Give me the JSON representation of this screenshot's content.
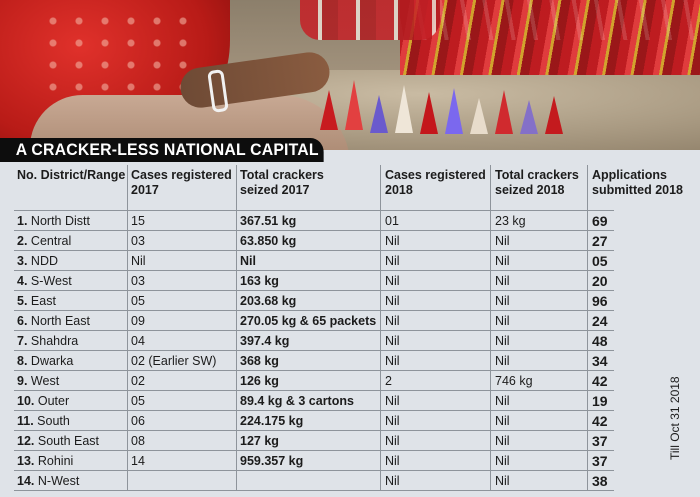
{
  "heading": "A CRACKER-LESS NATIONAL CAPITAL",
  "columns": [
    "No. District/Range",
    "Cases registered 2017",
    "Total crackers seized 2017",
    "Cases registered 2018",
    "Total crackers seized 2018",
    "Applications submitted 2018"
  ],
  "columns_split": [
    [
      "No. District/Range",
      ""
    ],
    [
      "Cases registered",
      "2017"
    ],
    [
      "Total crackers",
      "seized 2017"
    ],
    [
      "Cases registered",
      "2018"
    ],
    [
      "Total crackers",
      "seized 2018"
    ],
    [
      "Applications",
      "submitted 2018"
    ]
  ],
  "rows": [
    {
      "no": "1.",
      "district": "North Distt",
      "cases2017": "15",
      "seized2017": "367.51 kg",
      "cases2018": "01",
      "seized2018": "23 kg",
      "applications2018": "69"
    },
    {
      "no": "2.",
      "district": "Central",
      "cases2017": "03",
      "seized2017": "63.850 kg",
      "cases2018": "Nil",
      "seized2018": "Nil",
      "applications2018": "27"
    },
    {
      "no": "3.",
      "district": "NDD",
      "cases2017": "Nil",
      "seized2017": "Nil",
      "cases2018": "Nil",
      "seized2018": "Nil",
      "applications2018": "05"
    },
    {
      "no": "4.",
      "district": "S-West",
      "cases2017": "03",
      "seized2017": "163 kg",
      "cases2018": "Nil",
      "seized2018": "Nil",
      "applications2018": "20"
    },
    {
      "no": "5.",
      "district": "East",
      "cases2017": "05",
      "seized2017": "203.68 kg",
      "cases2018": "Nil",
      "seized2018": "Nil",
      "applications2018": "96"
    },
    {
      "no": "6.",
      "district": "North East",
      "cases2017": "09",
      "seized2017": "270.05 kg & 65 packets",
      "cases2018": "Nil",
      "seized2018": "Nil",
      "applications2018": "24"
    },
    {
      "no": "7.",
      "district": "Shahdra",
      "cases2017": "04",
      "seized2017": "397.4 kg",
      "cases2018": "Nil",
      "seized2018": "Nil",
      "applications2018": "48"
    },
    {
      "no": "8.",
      "district": "Dwarka",
      "cases2017": "02 (Earlier SW)",
      "seized2017": "368 kg",
      "cases2018": "Nil",
      "seized2018": "Nil",
      "applications2018": "34"
    },
    {
      "no": "9.",
      "district": "West",
      "cases2017": "02",
      "seized2017": "126 kg",
      "cases2018": "2",
      "seized2018": "746 kg",
      "applications2018": "42"
    },
    {
      "no": "10.",
      "district": "Outer",
      "cases2017": "05",
      "seized2017": "89.4 kg & 3 cartons",
      "cases2018": "Nil",
      "seized2018": "Nil",
      "applications2018": "19"
    },
    {
      "no": "11.",
      "district": "South",
      "cases2017": "06",
      "seized2017": "224.175 kg",
      "cases2018": "Nil",
      "seized2018": "Nil",
      "applications2018": "42"
    },
    {
      "no": "12.",
      "district": "South East",
      "cases2017": "08",
      "seized2017": "127 kg",
      "cases2018": "Nil",
      "seized2018": "Nil",
      "applications2018": "37"
    },
    {
      "no": "13.",
      "district": "Rohini",
      "cases2017": "14",
      "seized2017": "959.357 kg",
      "cases2018": "Nil",
      "seized2018": "Nil",
      "applications2018": "37"
    },
    {
      "no": "14.",
      "district": "N-West",
      "cases2017": "",
      "seized2017": "",
      "cases2018": "Nil",
      "seized2018": "Nil",
      "applications2018": "38"
    }
  ],
  "side_note": "Till Oct 31 2018",
  "colors": {
    "heading_bg": "#0d0d0d",
    "heading_text": "#ffffff",
    "page_bg": "#dfe3e8",
    "rule": "#8e949b"
  }
}
